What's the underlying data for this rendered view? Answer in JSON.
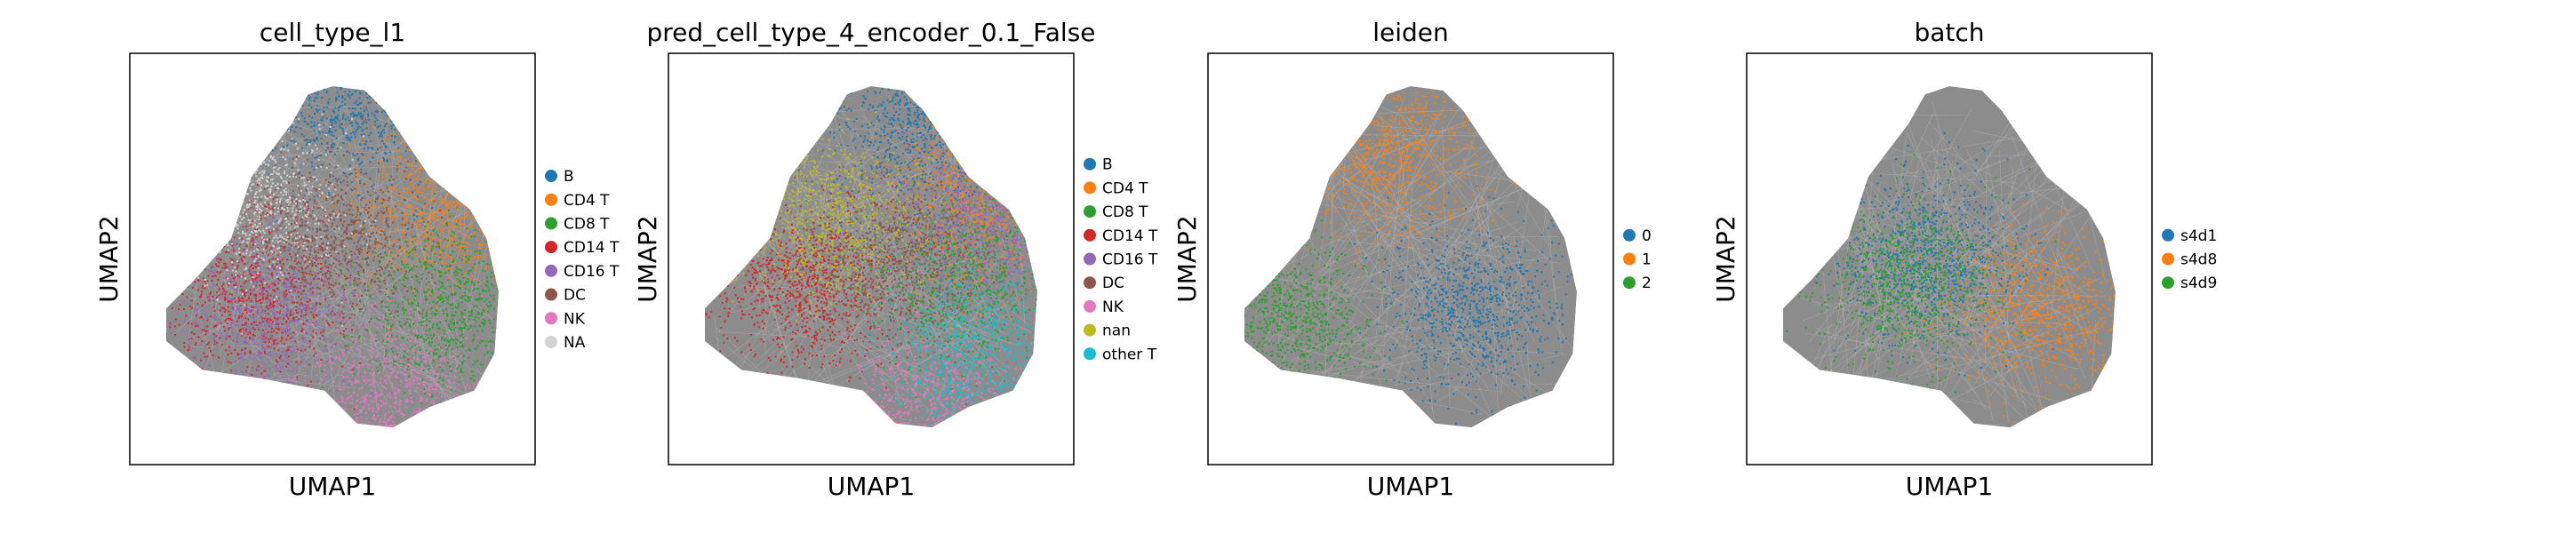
{
  "chart_data": [
    {
      "type": "scatter",
      "title": "cell_type_l1",
      "xlabel": "UMAP1",
      "ylabel": "UMAP2",
      "grid": false,
      "legend_position": "right",
      "series": [
        {
          "name": "B",
          "color": "#1f77b4",
          "region": [
            0.55,
            0.12
          ]
        },
        {
          "name": "CD4 T",
          "color": "#ff7f0e",
          "region": [
            0.76,
            0.38
          ]
        },
        {
          "name": "CD8 T",
          "color": "#2ca02c",
          "region": [
            0.78,
            0.62
          ]
        },
        {
          "name": "CD14 T",
          "color": "#d62728",
          "region": [
            0.3,
            0.58
          ]
        },
        {
          "name": "CD16 T",
          "color": "#9467bd",
          "region": [
            0.36,
            0.64
          ]
        },
        {
          "name": "DC",
          "color": "#8c564b",
          "region": [
            0.5,
            0.45
          ]
        },
        {
          "name": "NK",
          "color": "#e377c2",
          "region": [
            0.65,
            0.83
          ]
        },
        {
          "name": "NA",
          "color": "#d3d3d3",
          "region": [
            0.3,
            0.35
          ]
        }
      ]
    },
    {
      "type": "scatter",
      "title": "pred_cell_type_4_encoder_0.1_False",
      "xlabel": "UMAP1",
      "ylabel": "UMAP2",
      "grid": false,
      "legend_position": "right",
      "series": [
        {
          "name": "B",
          "color": "#1f77b4",
          "region": [
            0.62,
            0.15
          ]
        },
        {
          "name": "CD4 T",
          "color": "#ff7f0e",
          "region": [
            0.76,
            0.36
          ]
        },
        {
          "name": "CD8 T",
          "color": "#2ca02c",
          "region": [
            0.72,
            0.55
          ]
        },
        {
          "name": "CD14 T",
          "color": "#d62728",
          "region": [
            0.33,
            0.57
          ]
        },
        {
          "name": "CD16 T",
          "color": "#9467bd",
          "region": [
            0.77,
            0.42
          ]
        },
        {
          "name": "DC",
          "color": "#8c564b",
          "region": [
            0.55,
            0.5
          ]
        },
        {
          "name": "NK",
          "color": "#e377c2",
          "region": [
            0.66,
            0.86
          ]
        },
        {
          "name": "nan",
          "color": "#bcbd22",
          "region": [
            0.38,
            0.4
          ]
        },
        {
          "name": "other T",
          "color": "#17becf",
          "region": [
            0.75,
            0.73
          ]
        }
      ]
    },
    {
      "type": "scatter",
      "title": "leiden",
      "xlabel": "UMAP1",
      "ylabel": "UMAP2",
      "grid": false,
      "legend_position": "right",
      "series": [
        {
          "name": "0",
          "color": "#1f77b4",
          "region": [
            0.65,
            0.62
          ]
        },
        {
          "name": "1",
          "color": "#ff7f0e",
          "region": [
            0.45,
            0.25
          ]
        },
        {
          "name": "2",
          "color": "#2ca02c",
          "region": [
            0.2,
            0.65
          ]
        }
      ]
    },
    {
      "type": "scatter",
      "title": "batch",
      "xlabel": "UMAP1",
      "ylabel": "UMAP2",
      "grid": false,
      "legend_position": "right",
      "series": [
        {
          "name": "s4d1",
          "color": "#1f77b4",
          "region": [
            0.45,
            0.5
          ]
        },
        {
          "name": "s4d8",
          "color": "#ff7f0e",
          "region": [
            0.72,
            0.62
          ]
        },
        {
          "name": "s4d9",
          "color": "#2ca02c",
          "region": [
            0.4,
            0.55
          ]
        }
      ]
    }
  ]
}
